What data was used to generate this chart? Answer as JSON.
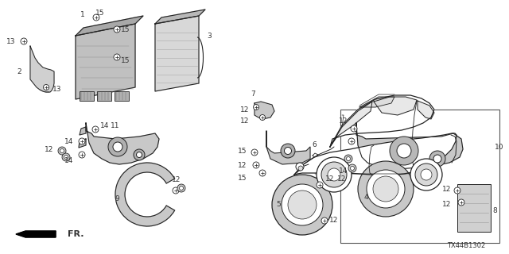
{
  "background_color": "#ffffff",
  "diagram_code": "TX44B1302",
  "fr_label": "FR.",
  "fig_width": 6.4,
  "fig_height": 3.2,
  "dpi": 100,
  "line_color": "#222222",
  "label_color": "#333333",
  "lw": 0.7
}
